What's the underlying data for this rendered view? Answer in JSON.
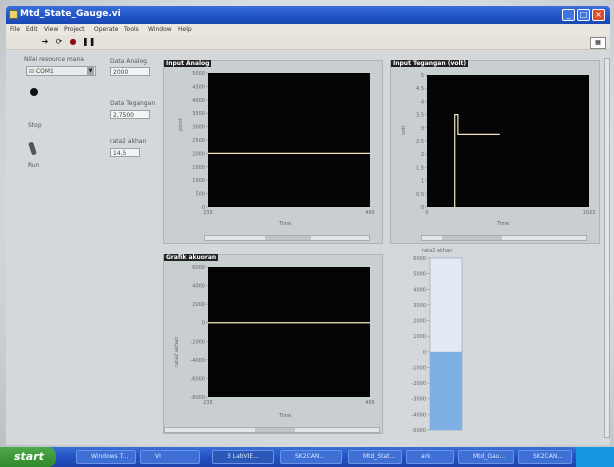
{
  "window": {
    "title": "Mtd_State_Gauge.vi"
  },
  "menu": [
    "File",
    "Edit",
    "View",
    "Project",
    "Operate",
    "Tools",
    "Window",
    "Help"
  ],
  "controls": {
    "port_label": "Nilai resource mana",
    "port_value": "COM1",
    "stop_label": "Stop",
    "run_label": "Run",
    "data_analog_label": "Data Analog",
    "data_analog_value": "2000",
    "data_tegangan_label": "Data Tegangan",
    "data_tegangan_value": "2,7500",
    "rata_label": "rata2 akhan",
    "rata_value": "14,5"
  },
  "charts": {
    "input_analog": {
      "title": "Input Analog",
      "ylabel": "point",
      "xlabel": "Time",
      "yticks": [
        "5000",
        "4500",
        "4000",
        "3500",
        "3000",
        "2500",
        "2000",
        "1500",
        "1000",
        "500",
        "0"
      ],
      "xticks": [
        "235",
        "495"
      ]
    },
    "input_tegangan": {
      "title": "Input Tegangan (volt)",
      "ylabel": "volt",
      "xlabel": "Time",
      "yticks": [
        "5",
        "4.5",
        "4",
        "3.5",
        "3",
        "2.5",
        "2",
        "1.5",
        "1",
        "0.5",
        "0"
      ],
      "xticks": [
        "0",
        "1023"
      ]
    },
    "grafik": {
      "title": "Grafik akuoran",
      "ylabel": "rata2 akhan",
      "xlabel": "Time",
      "yticks": [
        "6000",
        "4000",
        "2000",
        "0",
        "-2000",
        "-4000",
        "-6000",
        "-8000"
      ],
      "xticks": [
        "235",
        "495"
      ]
    },
    "tank": {
      "title": "rata2 akhan",
      "yticks": [
        "6000",
        "5000",
        "4000",
        "3000",
        "2000",
        "1000",
        "0",
        "-1000",
        "-2000",
        "-3000",
        "-4000",
        "-5000"
      ]
    }
  },
  "chart_data": [
    {
      "type": "line",
      "title": "Input Analog",
      "xlabel": "Time",
      "ylabel": "point",
      "xlim": [
        235,
        495
      ],
      "ylim": [
        0,
        5000
      ],
      "series": [
        {
          "x": [
            235,
            495
          ],
          "y": [
            2000,
            2000
          ]
        }
      ]
    },
    {
      "type": "line",
      "title": "Input Tegangan (volt)",
      "xlabel": "Time",
      "ylabel": "volt",
      "xlim": [
        0,
        1023
      ],
      "ylim": [
        0,
        5
      ],
      "series": [
        {
          "x": [
            175,
            175,
            195,
            195,
            460
          ],
          "y": [
            0,
            3.5,
            3.5,
            2.75,
            2.75
          ]
        }
      ]
    },
    {
      "type": "line",
      "title": "Grafik akuoran",
      "xlabel": "Time",
      "ylabel": "rata2 akhan",
      "xlim": [
        235,
        495
      ],
      "ylim": [
        -8000,
        6000
      ],
      "series": [
        {
          "x": [
            235,
            495
          ],
          "y": [
            0,
            0
          ]
        }
      ]
    },
    {
      "type": "bar",
      "title": "rata2 akhan",
      "ylim": [
        -5000,
        6000
      ],
      "values": [
        0
      ]
    }
  ],
  "taskbar": {
    "start": "start",
    "tasks": [
      "Windows T...",
      "VI",
      "3 LabVIE...",
      "SK2CAN...",
      "Mtd_Stat...",
      "ark",
      "Mtd_Gau...",
      "SK2CAN..."
    ]
  }
}
